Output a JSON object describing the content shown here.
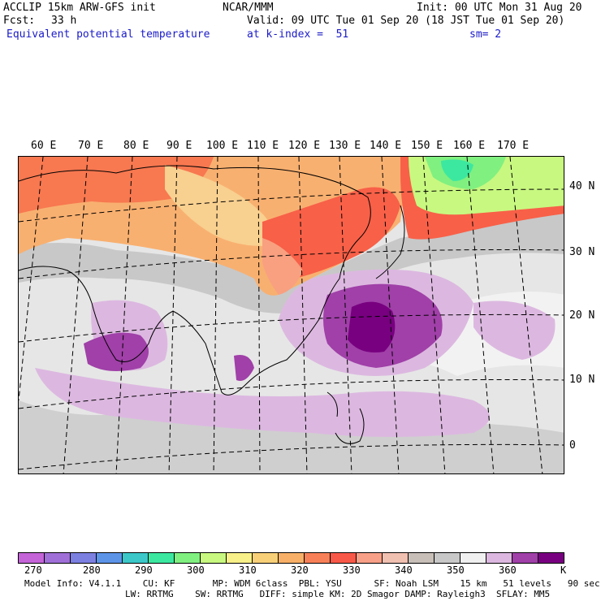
{
  "header": {
    "model": "ACCLIP 15km ARW-GFS init",
    "org": "NCAR/MMM",
    "init": "Init: 00 UTC Mon 31 Aug 20",
    "fcst_label": "Fcst:",
    "fcst_value": "33 h",
    "valid": "Valid: 09 UTC Tue 01 Sep 20 (18 JST Tue 01 Sep 20)",
    "field": "Equivalent potential temperature",
    "level": "at k-index =  51",
    "smooth": "sm= 2"
  },
  "lon_labels": [
    "60 E",
    "70 E",
    "80 E",
    "90 E",
    "100 E",
    "110 E",
    "120 E",
    "130 E",
    "140 E",
    "150 E",
    "160 E",
    "170 E"
  ],
  "lat_labels": [
    "40 N",
    "30 N",
    "20 N",
    "10 N",
    "0"
  ],
  "colorbar": {
    "colors": [
      "#c464d8",
      "#a070d8",
      "#7c80e0",
      "#5c94e8",
      "#3cc8c8",
      "#3ce8a0",
      "#80f080",
      "#c8f880",
      "#f8f088",
      "#f8d078",
      "#f8b068",
      "#f88058",
      "#f85848",
      "#f8a088",
      "#f0c0b0",
      "#c8c0b8",
      "#c8c8c8",
      "#f0f0f0",
      "#dcb8e0",
      "#a040a8",
      "#780080"
    ],
    "labels": [
      "270",
      "280",
      "290",
      "300",
      "310",
      "320",
      "330",
      "340",
      "350",
      "360"
    ],
    "unit": "K"
  },
  "footer": {
    "line1": "Model Info: V4.1.1    CU: KF       MP: WDM 6class  PBL: YSU      SF: Noah LSM    15 km   51 levels   90 sec",
    "line2": "LW: RRTMG    SW: RRTMG   DIFF: simple KM: 2D Smagor DAMP: Rayleigh3  SFLAY: MM5"
  }
}
